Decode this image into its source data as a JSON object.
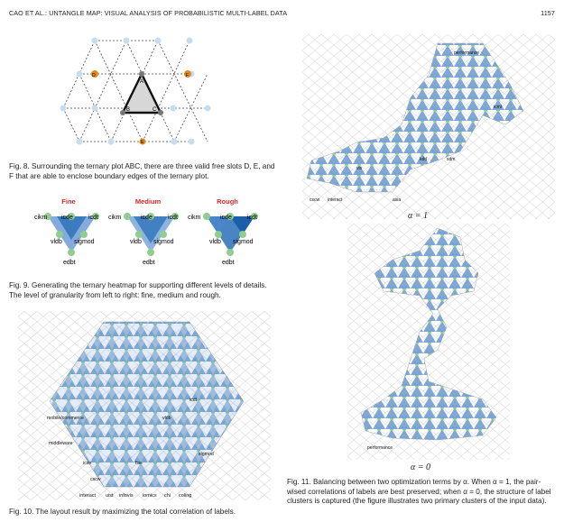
{
  "header": {
    "running_title": "CAO ET AL.: UNTANGLE MAP: VISUAL ANALYSIS OF PROBABILISTIC MULTI-LABEL DATA",
    "page_number": "1157"
  },
  "fig8": {
    "caption": "Fig. 8. Surrounding the ternary plot ABC, there are three valid free slots D, E, and F that are able to enclose boundary edges of the ternary plot.",
    "vertices": {
      "A": "A",
      "B": "B",
      "C": "C",
      "D": "D",
      "E": "E",
      "F": "F"
    }
  },
  "fig9": {
    "caption": "Fig. 9. Generating the ternary heatmap for supporting different levels of details. The level of granularity from left to right: fine, medium and rough.",
    "panels": [
      {
        "title": "Fine",
        "color": "#d62728"
      },
      {
        "title": "Medium",
        "color": "#d62728"
      },
      {
        "title": "Rough",
        "color": "#d62728"
      }
    ],
    "labels": {
      "cikm": "cikm",
      "icde": "icde",
      "icdt": "icdt",
      "vldb": "vldb",
      "sigmod": "sigmod",
      "edbt": "edbt"
    }
  },
  "fig10": {
    "caption": "Fig. 10. The layout result by maximizing the total correlation of labels.",
    "bottom_labels": [
      "interact",
      "uist",
      "infovis",
      "iomics",
      "chi",
      "coling"
    ],
    "side_labels": [
      "mobile/commerce",
      "middleware",
      "icse",
      "cscw",
      "fse",
      "vldb",
      "icdt",
      "sigmod"
    ]
  },
  "fig11": {
    "caption": "Fig. 11. Balancing between two optimization terms by α. When α = 1, the pair-wised correlations of labels are best preserved; when α = 0, the structure of label clusters is captured (the figure illustrates two primary clusters of the input data).",
    "alpha1": "α = 1",
    "alpha0": "α = 0",
    "labels_top": [
      "cscw",
      "interact",
      "vis",
      "asia",
      "kdd",
      "sdm",
      "icml",
      "performance"
    ],
    "labels_bottom": [
      "performance"
    ]
  },
  "colors": {
    "blue": "#2a6fb8",
    "green_node": "#8fce8f",
    "orange_node": "#e08a1e",
    "light_node": "#c8dcf0",
    "red_title": "#d62728"
  }
}
